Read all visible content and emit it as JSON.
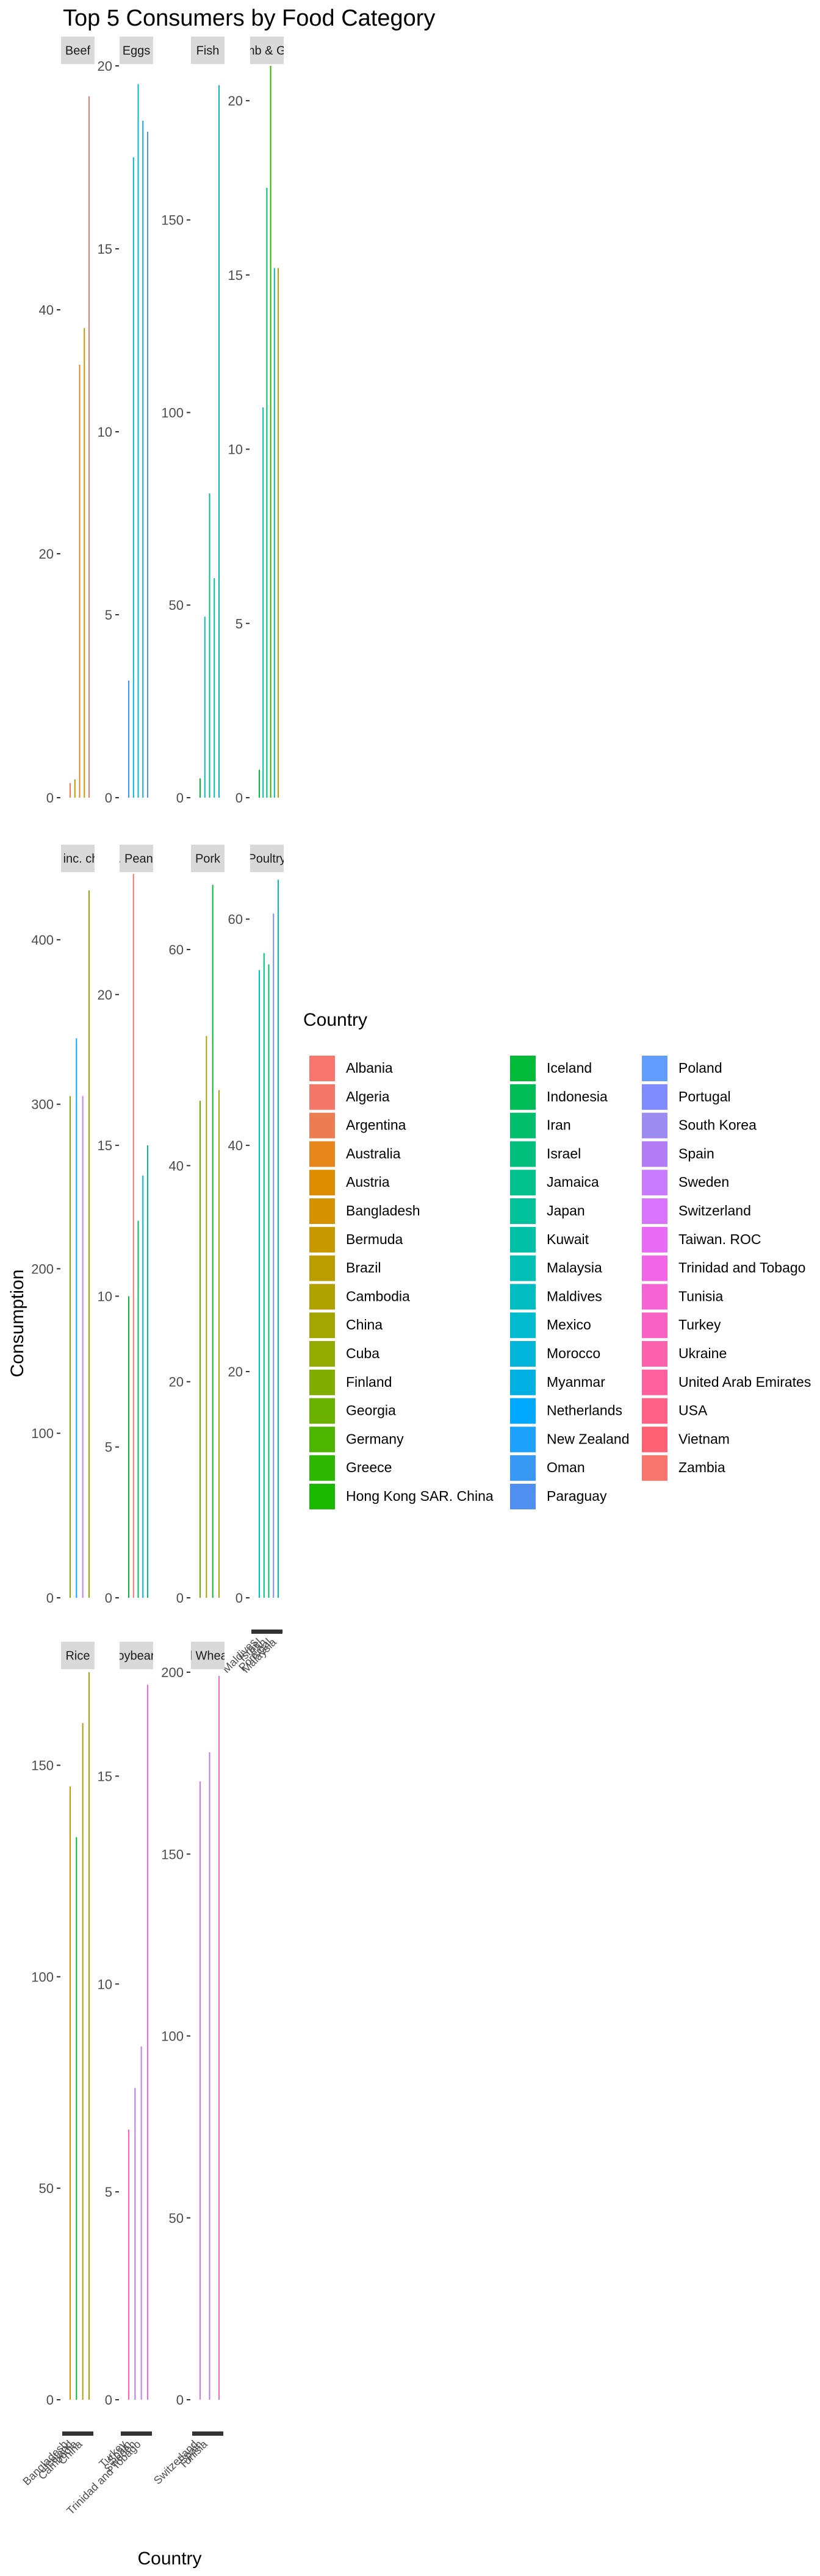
{
  "chart_data": {
    "type": "bar",
    "title": "Top 5 Consumers by Food Category",
    "xlabel": "Country",
    "ylabel": "Consumption",
    "legend_title": "Country",
    "legend_position": "right",
    "grid": false,
    "facet_columns": 4,
    "legend_entries": [
      {
        "name": "Albania",
        "color": "#F8766D"
      },
      {
        "name": "Algeria",
        "color": "#F3786A"
      },
      {
        "name": "Argentina",
        "color": "#EC7D52"
      },
      {
        "name": "Australia",
        "color": "#E7861B"
      },
      {
        "name": "Austria",
        "color": "#DE8C00"
      },
      {
        "name": "Bangladesh",
        "color": "#D49200"
      },
      {
        "name": "Bermuda",
        "color": "#C89800"
      },
      {
        "name": "Brazil",
        "color": "#BB9D00"
      },
      {
        "name": "Cambodia",
        "color": "#AFA100"
      },
      {
        "name": "China",
        "color": "#A3A500"
      },
      {
        "name": "Cuba",
        "color": "#93AA00"
      },
      {
        "name": "Finland",
        "color": "#81AD00"
      },
      {
        "name": "Georgia",
        "color": "#6BB100"
      },
      {
        "name": "Germany",
        "color": "#4DB400"
      },
      {
        "name": "Greece",
        "color": "#2EB600"
      },
      {
        "name": "Hong Kong SAR. China",
        "color": "#1AB800"
      },
      {
        "name": "Iceland",
        "color": "#00BA38"
      },
      {
        "name": "Indonesia",
        "color": "#00BC56"
      },
      {
        "name": "Iran",
        "color": "#00BE6C"
      },
      {
        "name": "Israel",
        "color": "#00BF7D"
      },
      {
        "name": "Jamaica",
        "color": "#00C08B"
      },
      {
        "name": "Japan",
        "color": "#00C19A"
      },
      {
        "name": "Kuwait",
        "color": "#00C0A8"
      },
      {
        "name": "Malaysia",
        "color": "#00BFB5"
      },
      {
        "name": "Maldives",
        "color": "#00BDC2"
      },
      {
        "name": "Mexico",
        "color": "#00BACE"
      },
      {
        "name": "Morocco",
        "color": "#00B5D9"
      },
      {
        "name": "Myanmar",
        "color": "#00B0E3"
      },
      {
        "name": "Netherlands",
        "color": "#00A9FF"
      },
      {
        "name": "New Zealand",
        "color": "#1EA1FB"
      },
      {
        "name": "Oman",
        "color": "#3A98F5"
      },
      {
        "name": "Paraguay",
        "color": "#4F8FF0"
      },
      {
        "name": "Poland",
        "color": "#619CFF"
      },
      {
        "name": "Portugal",
        "color": "#7F8CFF"
      },
      {
        "name": "South Korea",
        "color": "#9C8CF2"
      },
      {
        "name": "Spain",
        "color": "#B27CF6"
      },
      {
        "name": "Sweden",
        "color": "#C77CFF"
      },
      {
        "name": "Switzerland",
        "color": "#D874FD"
      },
      {
        "name": "Taiwan. ROC",
        "color": "#E76BF3"
      },
      {
        "name": "Trinidad and Tobago",
        "color": "#F066E4"
      },
      {
        "name": "Tunisia",
        "color": "#F564D3"
      },
      {
        "name": "Turkey",
        "color": "#FA62C1"
      },
      {
        "name": "Ukraine",
        "color": "#FC61AE"
      },
      {
        "name": "United Arab Emirates",
        "color": "#FE619B"
      },
      {
        "name": "USA",
        "color": "#FF6187"
      },
      {
        "name": "Vietnam",
        "color": "#FD6274"
      },
      {
        "name": "Zambia",
        "color": "#F8766D"
      }
    ],
    "facets": [
      {
        "label": "Beef",
        "ylim": [
          0,
          60
        ],
        "yticks": [
          0,
          20,
          40
        ],
        "bars": [
          {
            "country": "Argentina",
            "value": 1.2
          },
          {
            "country": "Brazil",
            "value": 1.5
          },
          {
            "country": "Australia",
            "value": 35.5
          },
          {
            "country": "Bermuda",
            "value": 38.5
          },
          {
            "country": "Albania",
            "value": 57.5
          }
        ]
      },
      {
        "label": "Eggs",
        "ylim": [
          0,
          20
        ],
        "yticks": [
          0,
          5,
          10,
          15,
          20
        ],
        "bars": [
          {
            "country": "Oman",
            "value": 3.2
          },
          {
            "country": "Morocco",
            "value": 17.5
          },
          {
            "country": "Mexico",
            "value": 19.5
          },
          {
            "country": "New Zealand",
            "value": 18.5
          },
          {
            "country": "Paraguay",
            "value": 18.2
          }
        ]
      },
      {
        "label": "Fish",
        "ylim": [
          0,
          190
        ],
        "yticks": [
          0,
          50,
          100,
          150
        ],
        "bars": [
          {
            "country": "Iceland",
            "value": 5
          },
          {
            "country": "Maldives",
            "value": 47
          },
          {
            "country": "Jamaica",
            "value": 79
          },
          {
            "country": "Malaysia",
            "value": 57
          },
          {
            "country": "Morocco",
            "value": 185
          }
        ]
      },
      {
        "label": "Lamb & Goat",
        "ylim": [
          0,
          21
        ],
        "yticks": [
          0,
          5,
          10,
          15,
          20
        ],
        "bars": [
          {
            "country": "Iceland",
            "value": 0.8
          },
          {
            "country": "Kuwait",
            "value": 11.2
          },
          {
            "country": "Israel",
            "value": 17.5
          },
          {
            "country": "Greece",
            "value": 21
          },
          {
            "country": "Kuwait",
            "value": 15.2
          },
          {
            "country": "Bermuda",
            "value": 15.2
          }
        ]
      },
      {
        "label": "Milk - inc. cheese",
        "ylim": [
          0,
          440
        ],
        "yticks": [
          0,
          100,
          200,
          300,
          400
        ],
        "bars": [
          {
            "country": "Finland",
            "value": 305
          },
          {
            "country": "Netherlands",
            "value": 340
          },
          {
            "country": "Sweden",
            "value": 305
          },
          {
            "country": "Cuba",
            "value": 430
          }
        ]
      },
      {
        "label": "Nuts inc. Peanut Butter",
        "ylim": [
          0,
          24
        ],
        "yticks": [
          0,
          5,
          10,
          15,
          20
        ],
        "bars": [
          {
            "country": "Iceland",
            "value": 10
          },
          {
            "country": "Algeria",
            "value": 24
          },
          {
            "country": "Indonesia",
            "value": 12.5
          },
          {
            "country": "Morocco",
            "value": 14
          },
          {
            "country": "Israel",
            "value": 15
          }
        ]
      },
      {
        "label": "Pork",
        "ylim": [
          0,
          67
        ],
        "yticks": [
          0,
          20,
          40,
          60
        ],
        "bars": [
          {
            "country": "Georgia",
            "value": 46
          },
          {
            "country": "Cambodia",
            "value": 52
          },
          {
            "country": "Iceland",
            "value": 66
          },
          {
            "country": "Brazil",
            "value": 47
          }
        ]
      },
      {
        "label": "Poultry",
        "ylim": [
          0,
          64
        ],
        "yticks": [
          0,
          20,
          40,
          60
        ],
        "bars": [
          {
            "country": "Maldives",
            "value": 55.5
          },
          {
            "country": "Israel",
            "value": 57
          },
          {
            "country": "Iran",
            "value": 56
          },
          {
            "country": "Portugal",
            "value": 60.5
          },
          {
            "country": "Malaysia",
            "value": 63.5
          }
        ]
      },
      {
        "label": "Rice",
        "ylim": [
          0,
          172
        ],
        "yticks": [
          0,
          50,
          100,
          150
        ],
        "bars": [
          {
            "country": "Bangladesh",
            "value": 145
          },
          {
            "country": "Iceland",
            "value": 133
          },
          {
            "country": "Cambodia",
            "value": 160
          },
          {
            "country": "China",
            "value": 172
          }
        ]
      },
      {
        "label": "Soybeans",
        "ylim": [
          0,
          17.5
        ],
        "yticks": [
          0,
          5,
          10,
          15
        ],
        "bars": [
          {
            "country": "Turkey",
            "value": 6.5
          },
          {
            "country": "Spain",
            "value": 7.5
          },
          {
            "country": "Sweden",
            "value": 8.5
          },
          {
            "country": "Trinidad and Tobago",
            "value": 17.2
          }
        ]
      },
      {
        "label": "Wheat and Wheat Products",
        "ylim": [
          0,
          200
        ],
        "yticks": [
          0,
          50,
          100,
          150,
          200
        ],
        "bars": [
          {
            "country": "Switzerland",
            "value": 170
          },
          {
            "country": "Spain",
            "value": 178
          },
          {
            "country": "Tunisia",
            "value": 199
          }
        ]
      }
    ]
  }
}
